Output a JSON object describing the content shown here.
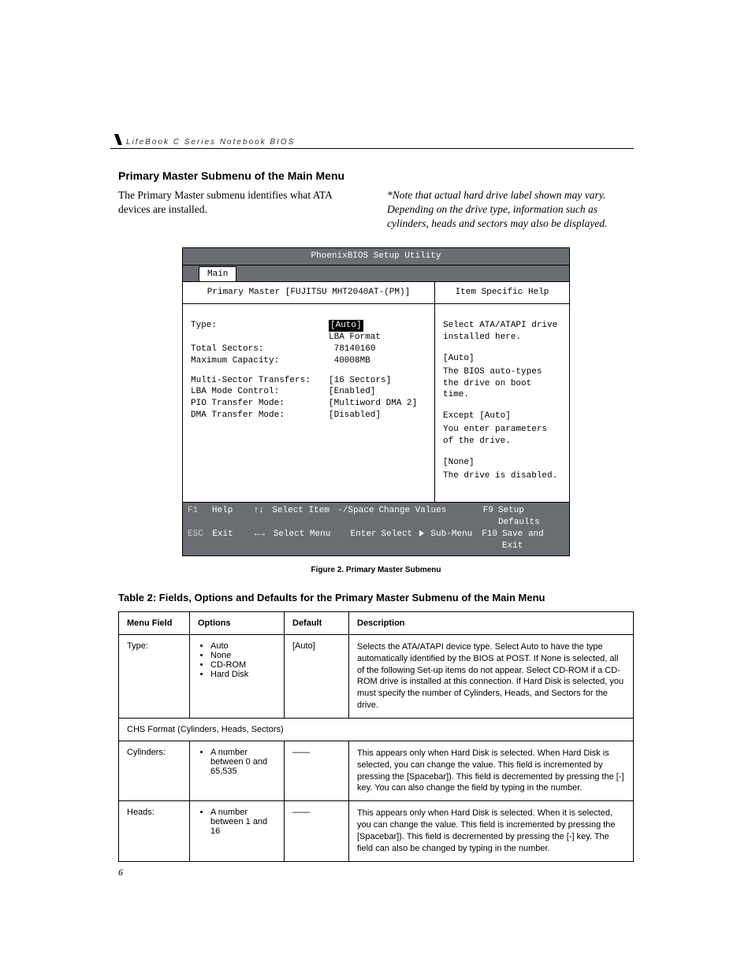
{
  "header": {
    "running_head": "LifeBook C Series Notebook BIOS"
  },
  "section": {
    "title": "Primary Master Submenu of the Main Menu",
    "intro": "The Primary Master submenu identifies what ATA devices are installed.",
    "note": "*Note that actual hard drive label shown may vary. Depending on the drive type, information such as cylinders, heads and sectors may also be displayed."
  },
  "bios": {
    "title": "PhoenixBIOS Setup Utility",
    "tab": "Main",
    "left_panel_title": "Primary Master [FUJITSU MHT2040AT-(PM)]",
    "right_panel_title": "Item Specific Help",
    "fields": {
      "type_label": "Type:",
      "type_value": "[Auto]",
      "lba_format": "LBA Format",
      "total_sectors_label": "Total Sectors:",
      "total_sectors_value": "78140160",
      "max_capacity_label": "Maximum Capacity:",
      "max_capacity_value": "40008MB",
      "mst_label": "Multi-Sector Transfers:",
      "mst_value": "[16 Sectors]",
      "lba_label": "LBA Mode Control:",
      "lba_value": "[Enabled]",
      "pio_label": "PIO Transfer Mode:",
      "pio_value": "[Multiword DMA 2]",
      "dma_label": "DMA Transfer Mode:",
      "dma_value": "[Disabled]"
    },
    "help": {
      "l1": "Select ATA/ATAPI drive installed here.",
      "l2": "[Auto]",
      "l3": "The BIOS auto-types the drive on boot time.",
      "l4": "Except [Auto]",
      "l5": "You enter parameters of the drive.",
      "l6": "[None]",
      "l7": "The drive is disabled."
    },
    "footer": {
      "f1": "F1",
      "help": "Help",
      "ud": "↑↓",
      "select_item": "Select Item",
      "minus_space": "-/Space",
      "change_values": "Change Values",
      "f9": "F9",
      "setup_defaults": "Setup Defaults",
      "esc": "ESC",
      "exit": "Exit",
      "lr": "←→",
      "select_menu": "Select Menu",
      "enter": "Enter",
      "select_sub": "Select",
      "sub_menu": "Sub-Menu",
      "f10": "F10",
      "save_exit": "Save and Exit"
    }
  },
  "figure_caption": "Figure 2.  Primary Master Submenu",
  "table_caption": "Table 2: Fields, Options and Defaults for the Primary Master Submenu of the Main Menu",
  "table": {
    "headers": {
      "c1": "Menu Field",
      "c2": "Options",
      "c3": "Default",
      "c4": "Description"
    },
    "rows": [
      {
        "field": "Type:",
        "options": [
          "Auto",
          "None",
          "CD-ROM",
          "Hard Disk"
        ],
        "default": "[Auto]",
        "desc": "Selects the ATA/ATAPI device type. Select Auto to have the type automatically identified by the BIOS at POST. If None is selected, all of the following Set-up items do not appear. Select CD-ROM if a CD-ROM drive is installed at this connection. If Hard Disk is selected, you must specify the number of Cylinders, Heads, and Sectors for the drive."
      },
      {
        "span": "CHS Format (Cylinders, Heads, Sectors)"
      },
      {
        "field": "Cylinders:",
        "options": [
          "A number between 0 and 65,535"
        ],
        "default": "——",
        "desc": "This appears only when Hard Disk is selected. When Hard Disk is selected, you can change the value. This field is incremented by pressing the [Spacebar]). This field is decremented by pressing the [-] key. You can also change the field by typing in the number."
      },
      {
        "field": "Heads:",
        "options": [
          "A number between 1 and 16"
        ],
        "default": "——",
        "desc": "This appears only when Hard Disk is selected. When it is selected, you can change the value. This field is incremented by pressing the [Spacebar]). This field is decremented by pressing the [-] key. The field can also be changed by typing in the number."
      }
    ]
  },
  "page_number": "6"
}
